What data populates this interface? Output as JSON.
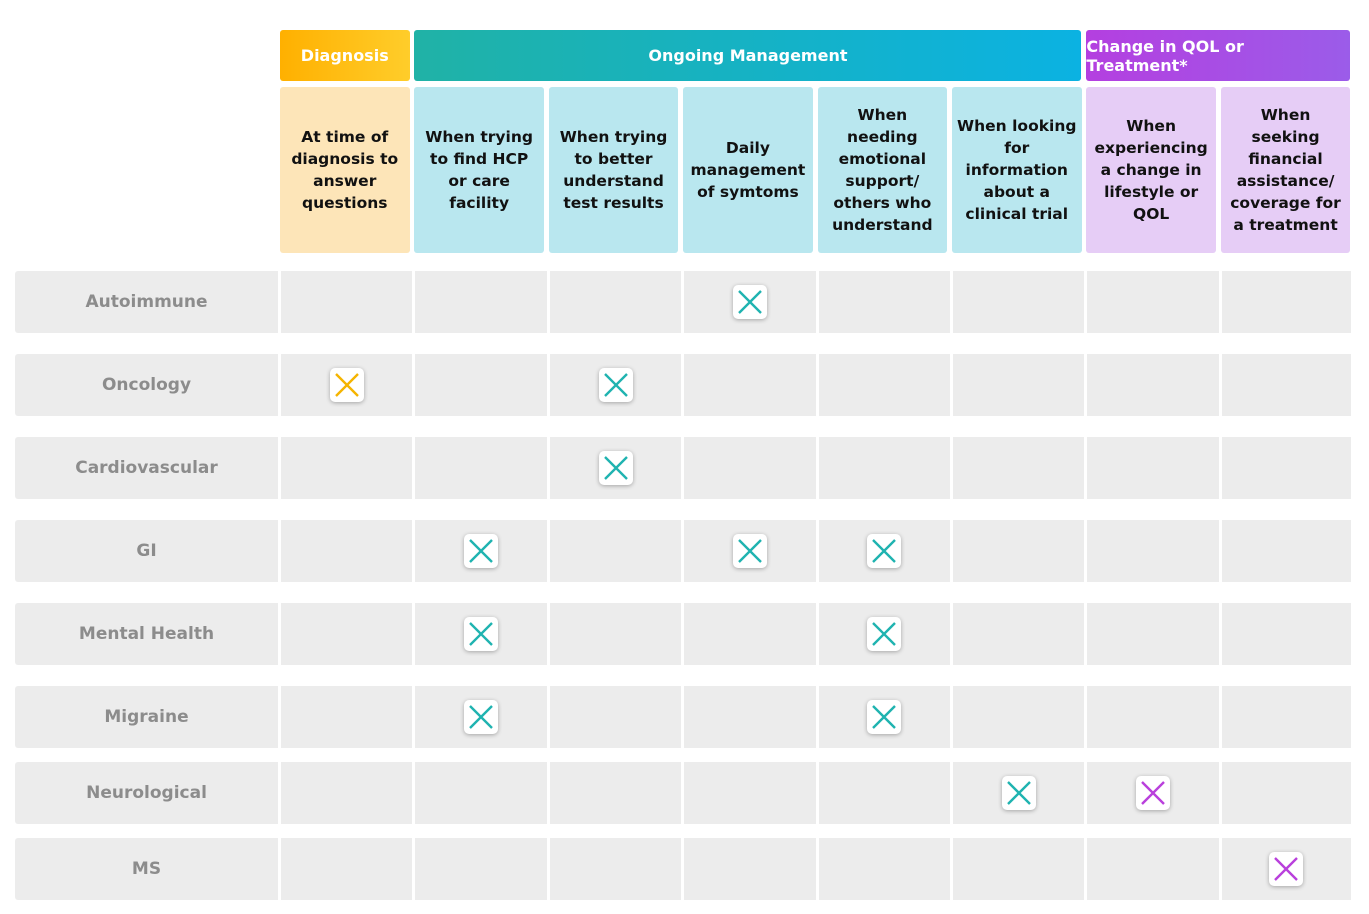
{
  "groups": [
    {
      "title": "Diagnosis",
      "columns": [
        "At time of diagnosis to answer questions"
      ]
    },
    {
      "title": "Ongoing Management",
      "columns": [
        "When trying to find HCP or care facility",
        "When trying to better understand test results",
        "Daily management of symtoms",
        "When needing emotional support/ others who understand",
        "When looking for information about a clinical trial"
      ]
    },
    {
      "title": "Change in QOL or Treatment*",
      "columns": [
        "When experiencing a change in lifestyle or QOL",
        "When seeking financial assistance/ coverage for a treatment"
      ]
    }
  ],
  "rows": [
    {
      "label": "Autoimmune",
      "cells": [
        false,
        false,
        false,
        true,
        false,
        false,
        false,
        false
      ]
    },
    {
      "label": "Oncology",
      "cells": [
        true,
        false,
        true,
        false,
        false,
        false,
        false,
        false
      ]
    },
    {
      "label": "Cardiovascular",
      "cells": [
        false,
        false,
        true,
        false,
        false,
        false,
        false,
        false
      ]
    },
    {
      "label": "GI",
      "cells": [
        false,
        true,
        false,
        true,
        true,
        false,
        false,
        false
      ]
    },
    {
      "label": "Mental Health",
      "cells": [
        false,
        true,
        false,
        false,
        true,
        false,
        false,
        false
      ]
    },
    {
      "label": "Migraine",
      "cells": [
        false,
        true,
        false,
        false,
        true,
        false,
        false,
        false
      ]
    },
    {
      "label": "Neurological",
      "cells": [
        false,
        false,
        false,
        false,
        false,
        true,
        true,
        false
      ]
    },
    {
      "label": "MS",
      "cells": [
        false,
        false,
        false,
        false,
        false,
        false,
        false,
        true
      ]
    }
  ]
}
